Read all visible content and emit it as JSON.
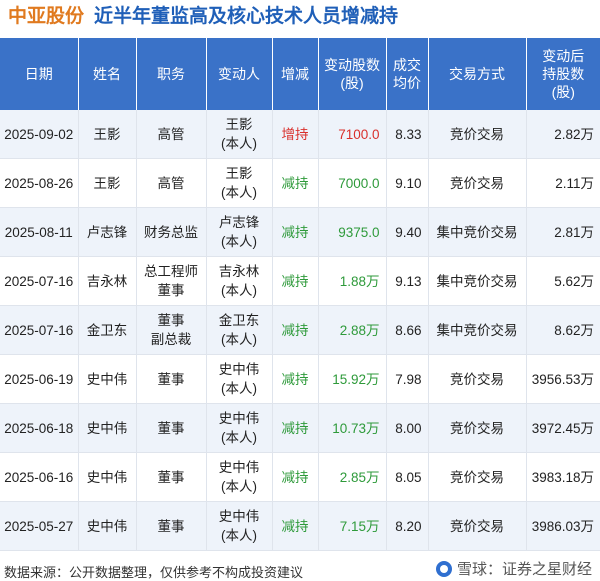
{
  "title": {
    "stock": "中亚股份",
    "subtitle": "近半年董监高及核心技术人员增减持"
  },
  "table": {
    "headers": [
      {
        "line1": "日期",
        "line2": "",
        "line3": ""
      },
      {
        "line1": "姓名",
        "line2": "",
        "line3": ""
      },
      {
        "line1": "职务",
        "line2": "",
        "line3": ""
      },
      {
        "line1": "变动人",
        "line2": "",
        "line3": ""
      },
      {
        "line1": "增减",
        "line2": "",
        "line3": ""
      },
      {
        "line1": "变动股数",
        "line2": "(股)",
        "line3": ""
      },
      {
        "line1": "成交",
        "line2": "均价",
        "line3": ""
      },
      {
        "line1": "交易方式",
        "line2": "",
        "line3": ""
      },
      {
        "line1": "变动后",
        "line2": "持股数",
        "line3": "(股)"
      }
    ],
    "rows": [
      {
        "date": "2025-09-02",
        "name": "王影",
        "role1": "高管",
        "role2": "",
        "changer1": "王影",
        "changer2": "(本人)",
        "direction": "增持",
        "shares": "7100.0",
        "price": "8.33",
        "method": "竞价交易",
        "after": "2.82万"
      },
      {
        "date": "2025-08-26",
        "name": "王影",
        "role1": "高管",
        "role2": "",
        "changer1": "王影",
        "changer2": "(本人)",
        "direction": "减持",
        "shares": "7000.0",
        "price": "9.10",
        "method": "竞价交易",
        "after": "2.11万"
      },
      {
        "date": "2025-08-11",
        "name": "卢志锋",
        "role1": "财务总监",
        "role2": "",
        "changer1": "卢志锋",
        "changer2": "(本人)",
        "direction": "减持",
        "shares": "9375.0",
        "price": "9.40",
        "method": "集中竞价交易",
        "after": "2.81万"
      },
      {
        "date": "2025-07-16",
        "name": "吉永林",
        "role1": "总工程师",
        "role2": "董事",
        "changer1": "吉永林",
        "changer2": "(本人)",
        "direction": "减持",
        "shares": "1.88万",
        "price": "9.13",
        "method": "集中竞价交易",
        "after": "5.62万"
      },
      {
        "date": "2025-07-16",
        "name": "金卫东",
        "role1": "董事",
        "role2": "副总裁",
        "changer1": "金卫东",
        "changer2": "(本人)",
        "direction": "减持",
        "shares": "2.88万",
        "price": "8.66",
        "method": "集中竞价交易",
        "after": "8.62万"
      },
      {
        "date": "2025-06-19",
        "name": "史中伟",
        "role1": "董事",
        "role2": "",
        "changer1": "史中伟",
        "changer2": "(本人)",
        "direction": "减持",
        "shares": "15.92万",
        "price": "7.98",
        "method": "竞价交易",
        "after": "3956.53万"
      },
      {
        "date": "2025-06-18",
        "name": "史中伟",
        "role1": "董事",
        "role2": "",
        "changer1": "史中伟",
        "changer2": "(本人)",
        "direction": "减持",
        "shares": "10.73万",
        "price": "8.00",
        "method": "竞价交易",
        "after": "3972.45万"
      },
      {
        "date": "2025-06-16",
        "name": "史中伟",
        "role1": "董事",
        "role2": "",
        "changer1": "史中伟",
        "changer2": "(本人)",
        "direction": "减持",
        "shares": "2.85万",
        "price": "8.05",
        "method": "竞价交易",
        "after": "3983.18万"
      },
      {
        "date": "2025-05-27",
        "name": "史中伟",
        "role1": "董事",
        "role2": "",
        "changer1": "史中伟",
        "changer2": "(本人)",
        "direction": "减持",
        "shares": "7.15万",
        "price": "8.20",
        "method": "竞价交易",
        "after": "3986.03万"
      }
    ]
  },
  "footer": {
    "source": "数据来源：公开数据整理，仅供参考不构成投资建议"
  },
  "brand": {
    "label": "雪球：证券之星财经",
    "logo_icon": "snowball-logo-icon"
  },
  "watermark": {
    "text": "证券之星"
  },
  "colors": {
    "header_bg": "#3a72c8",
    "increase": "#d9302c",
    "decrease": "#2e9a3a",
    "title_stock": "#e07a1f",
    "title_sub": "#1f5fb8"
  }
}
